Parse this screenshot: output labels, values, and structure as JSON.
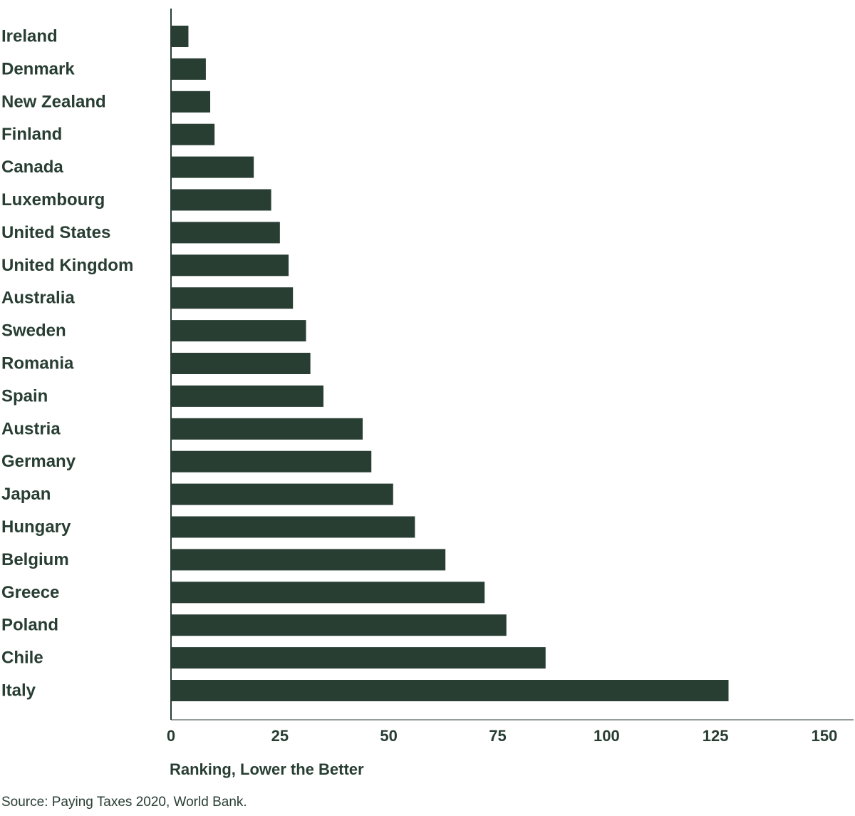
{
  "chart_data": {
    "type": "bar",
    "orientation": "horizontal",
    "categories": [
      "Ireland",
      "Denmark",
      "New Zealand",
      "Finland",
      "Canada",
      "Luxembourg",
      "United States",
      "United Kingdom",
      "Australia",
      "Sweden",
      "Romania",
      "Spain",
      "Austria",
      "Germany",
      "Japan",
      "Hungary",
      "Belgium",
      "Greece",
      "Poland",
      "Chile",
      "Italy"
    ],
    "values": [
      4,
      8,
      9,
      10,
      19,
      23,
      25,
      27,
      28,
      31,
      32,
      35,
      44,
      46,
      51,
      56,
      63,
      72,
      77,
      86,
      128
    ],
    "xlabel": "Ranking, Lower the Better",
    "ylabel": "",
    "xlim": [
      0,
      150
    ],
    "xticks": [
      "0",
      "25",
      "50",
      "75",
      "100",
      "125",
      "150"
    ],
    "grid": false,
    "legend": "none",
    "bar_color": "#283e33",
    "text_color": "#283e33"
  },
  "source": "Source: Paying Taxes 2020, World Bank."
}
